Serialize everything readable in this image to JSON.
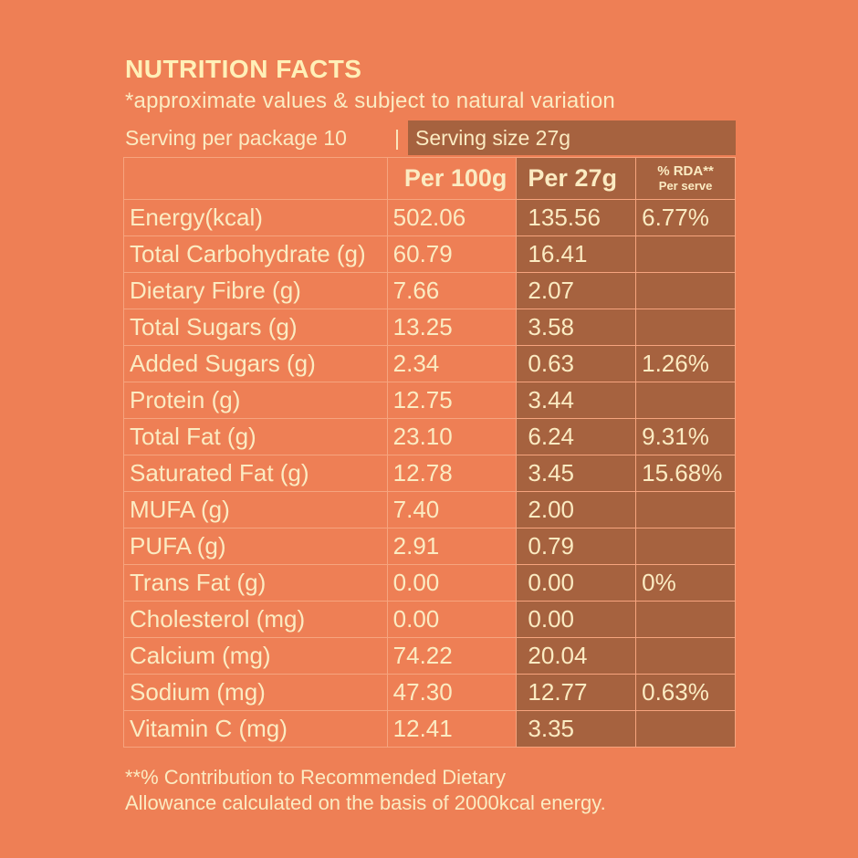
{
  "title": "NUTRITION FACTS",
  "note": "*approximate values & subject to natural variation",
  "serving": {
    "per_package": "Serving per package 10",
    "separator": "|",
    "size": "Serving size 27g"
  },
  "table": {
    "headers": [
      "",
      "Per 100g",
      "Per 27g",
      "% RDA**",
      "Per serve"
    ],
    "rows": [
      {
        "name": "Energy(kcal)",
        "per100": "502.06",
        "perServe": "135.56",
        "rda": "6.77%"
      },
      {
        "name": "Total Carbohydrate (g)",
        "per100": "60.79",
        "perServe": "16.41",
        "rda": ""
      },
      {
        "name": "Dietary Fibre (g)",
        "per100": "7.66",
        "perServe": "2.07",
        "rda": ""
      },
      {
        "name": "Total Sugars (g)",
        "per100": "13.25",
        "perServe": "3.58",
        "rda": ""
      },
      {
        "name": "Added Sugars (g)",
        "per100": "2.34",
        "perServe": "0.63",
        "rda": "1.26%"
      },
      {
        "name": "Protein (g)",
        "per100": "12.75",
        "perServe": "3.44",
        "rda": ""
      },
      {
        "name": "Total Fat (g)",
        "per100": "23.10",
        "perServe": "6.24",
        "rda": "9.31%"
      },
      {
        "name": "Saturated Fat (g)",
        "per100": "12.78",
        "perServe": "3.45",
        "rda": "15.68%"
      },
      {
        "name": "MUFA (g)",
        "per100": "7.40",
        "perServe": "2.00",
        "rda": ""
      },
      {
        "name": "PUFA (g)",
        "per100": "2.91",
        "perServe": "0.79",
        "rda": ""
      },
      {
        "name": "Trans Fat (g)",
        "per100": "0.00",
        "perServe": "0.00",
        "rda": "0%"
      },
      {
        "name": "Cholesterol (mg)",
        "per100": "0.00",
        "perServe": "0.00",
        "rda": ""
      },
      {
        "name": "Calcium (mg)",
        "per100": "74.22",
        "perServe": "20.04",
        "rda": ""
      },
      {
        "name": "Sodium (mg)",
        "per100": "47.30",
        "perServe": "12.77",
        "rda": "0.63%"
      },
      {
        "name": "Vitamin C (mg)",
        "per100": "12.41",
        "perServe": "3.35",
        "rda": ""
      }
    ]
  },
  "footnote": [
    "**% Contribution to Recommended Dietary",
    "Allowance calculated on the basis of 2000kcal energy."
  ],
  "colors": {
    "background": "#EE7F55",
    "dark_cell": "#A6623F",
    "text": "#FBEBC2"
  }
}
